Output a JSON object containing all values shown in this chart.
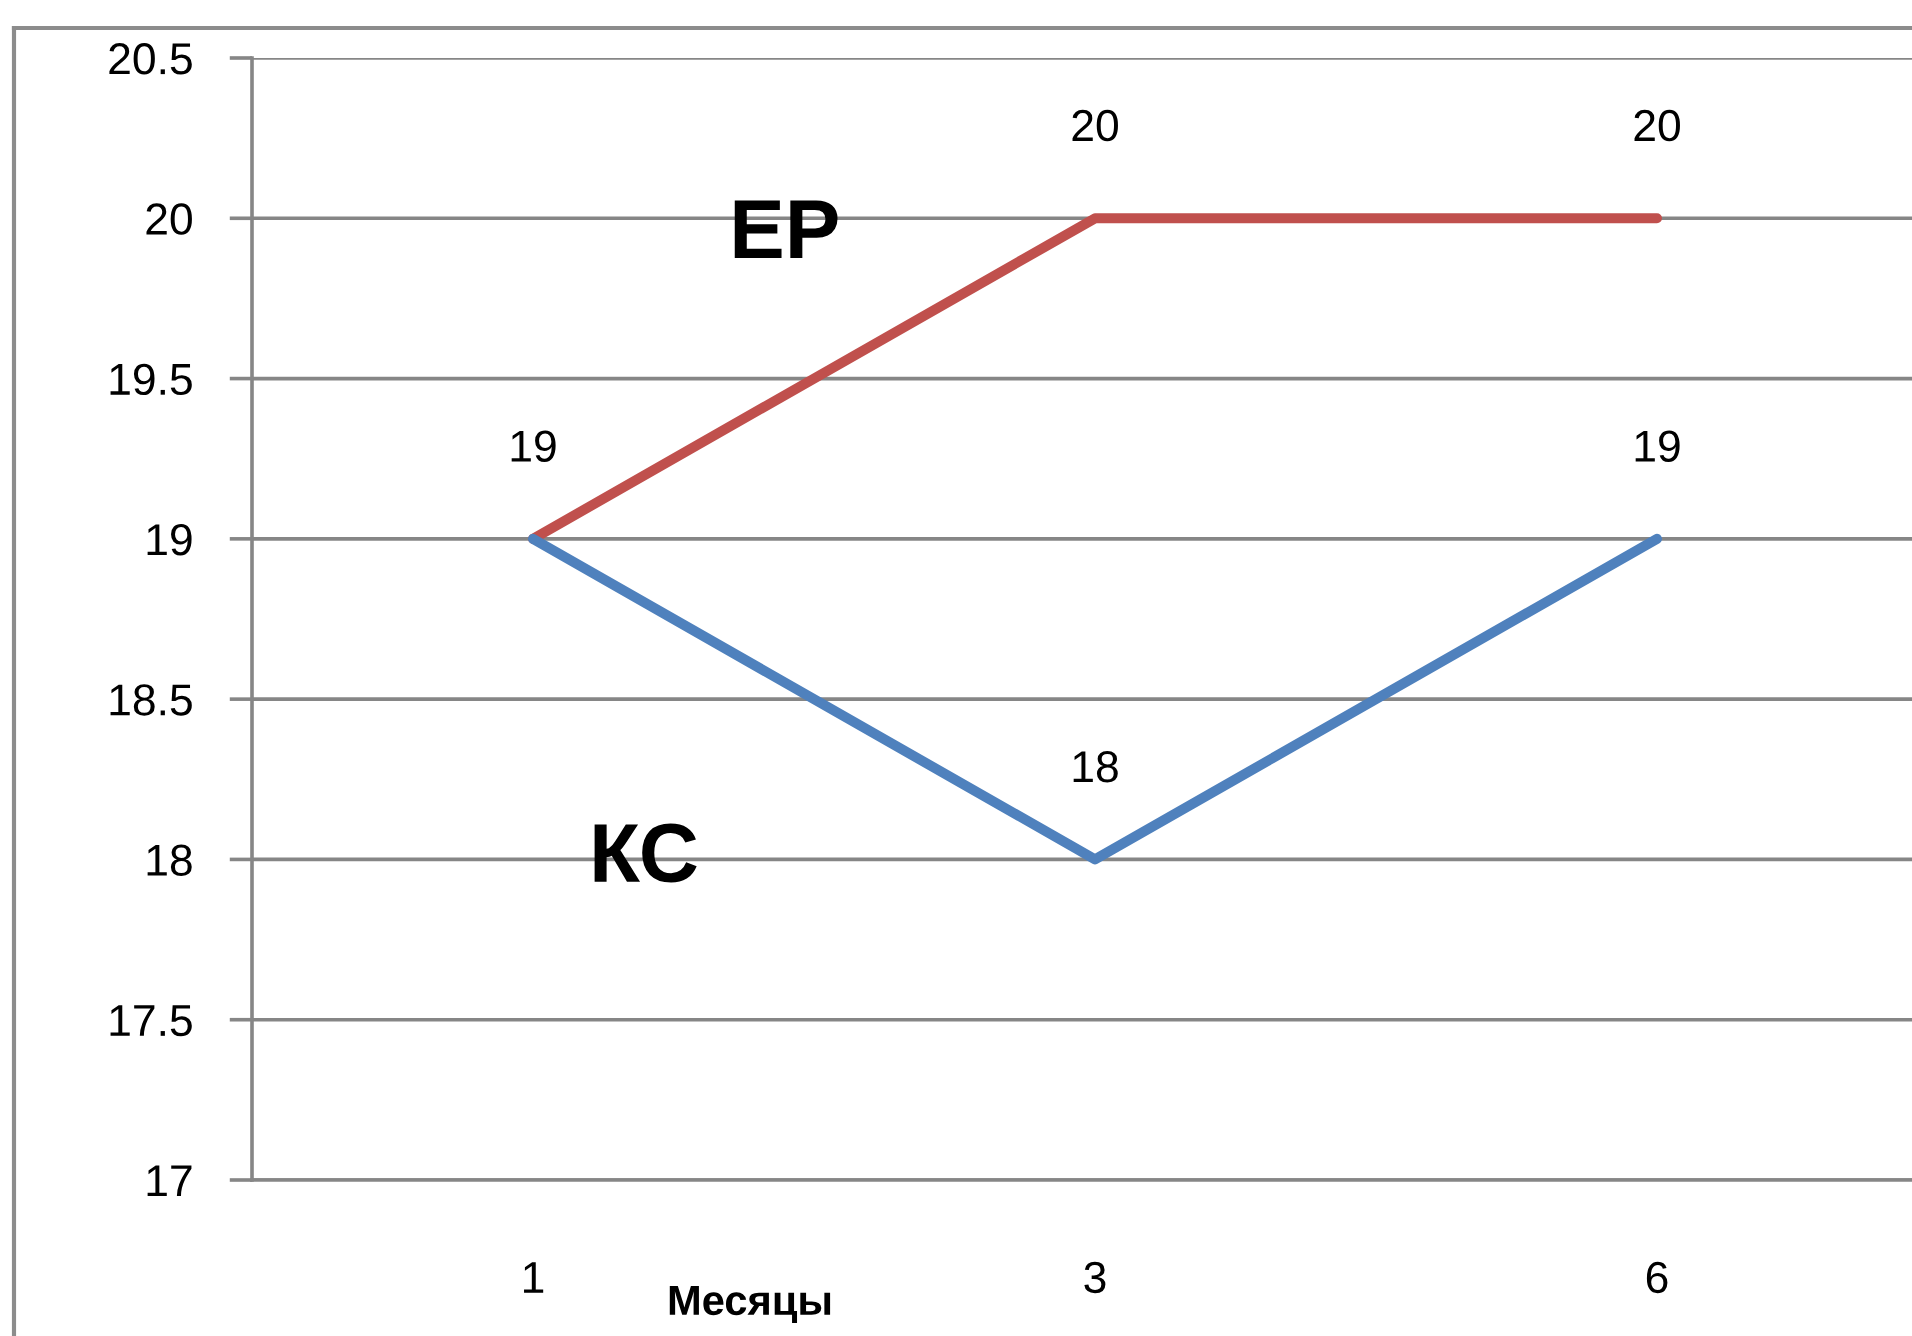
{
  "chart_data": {
    "type": "line",
    "xlabel": "Месяцы",
    "categories": [
      "1",
      "3",
      "6"
    ],
    "series": [
      {
        "name": "ЕР",
        "color": "#c0504d",
        "values": [
          19,
          20,
          20
        ],
        "value_labels": [
          "19",
          "20",
          "20"
        ]
      },
      {
        "name": "КС",
        "color": "#4f81bd",
        "values": [
          19,
          18,
          19
        ],
        "value_labels": [
          null,
          "18",
          "19"
        ]
      }
    ],
    "ylim": [
      17,
      20.5
    ],
    "yticks": [
      17,
      17.5,
      18,
      18.5,
      19,
      19.5,
      20,
      20.5
    ],
    "grid": "y",
    "line_style": "solid"
  }
}
